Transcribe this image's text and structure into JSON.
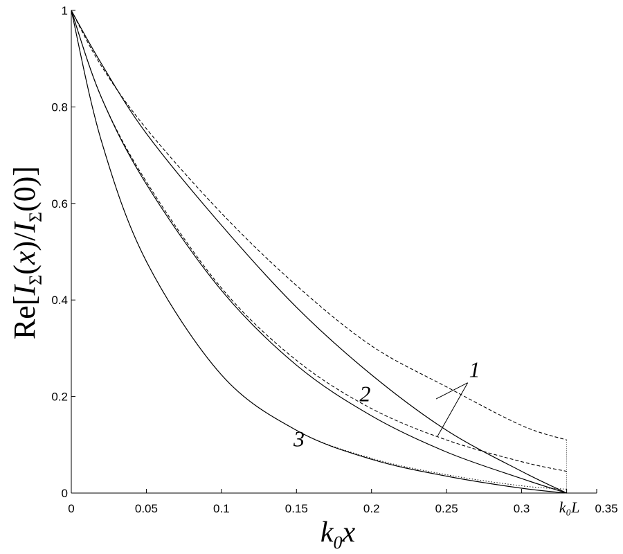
{
  "chart_data": {
    "type": "line",
    "title": "",
    "xlabel": "k₀x",
    "ylabel": "Re[IΣ(x)/IΣ(0)]",
    "xlim": [
      0,
      0.35
    ],
    "ylim": [
      0,
      1
    ],
    "x_ticks": [
      "0",
      "0.05",
      "0.1",
      "0.15",
      "0.2",
      "0.25",
      "0.3",
      "k₀L",
      "0.35"
    ],
    "y_ticks": [
      "0",
      "0.2",
      "0.4",
      "0.6",
      "0.8",
      "1"
    ],
    "end_x": 0.33,
    "grid": false,
    "series": [
      {
        "label": "1",
        "style": "solid",
        "color": "#000000",
        "x": [
          0,
          0.02,
          0.05,
          0.1,
          0.15,
          0.2,
          0.25,
          0.3,
          0.33
        ],
        "y": [
          1,
          0.89,
          0.745,
          0.555,
          0.385,
          0.245,
          0.13,
          0.045,
          0
        ]
      },
      {
        "label": "1",
        "style": "dashed",
        "color": "#000000",
        "x": [
          0,
          0.02,
          0.05,
          0.1,
          0.15,
          0.2,
          0.25,
          0.3,
          0.33
        ],
        "y": [
          1,
          0.885,
          0.755,
          0.58,
          0.43,
          0.305,
          0.22,
          0.14,
          0.11
        ]
      },
      {
        "label": "2",
        "style": "solid",
        "color": "#000000",
        "x": [
          0,
          0.02,
          0.05,
          0.1,
          0.15,
          0.2,
          0.25,
          0.3,
          0.33
        ],
        "y": [
          1,
          0.82,
          0.64,
          0.42,
          0.265,
          0.16,
          0.085,
          0.03,
          0
        ]
      },
      {
        "label": "2",
        "style": "dashed",
        "color": "#000000",
        "x": [
          0,
          0.02,
          0.05,
          0.1,
          0.15,
          0.2,
          0.25,
          0.3,
          0.33
        ],
        "y": [
          1,
          0.82,
          0.645,
          0.425,
          0.275,
          0.175,
          0.11,
          0.065,
          0.045
        ]
      },
      {
        "label": "3",
        "style": "solid",
        "color": "#000000",
        "x": [
          0,
          0.02,
          0.05,
          0.1,
          0.15,
          0.2,
          0.25,
          0.3,
          0.33
        ],
        "y": [
          1,
          0.73,
          0.48,
          0.245,
          0.13,
          0.07,
          0.035,
          0.01,
          0
        ]
      },
      {
        "label": "3",
        "style": "dotted",
        "color": "#000000",
        "x": [
          0,
          0.02,
          0.05,
          0.1,
          0.15,
          0.2,
          0.25,
          0.3,
          0.33
        ],
        "y": [
          1,
          0.73,
          0.48,
          0.245,
          0.13,
          0.072,
          0.038,
          0.015,
          0.008
        ]
      }
    ],
    "annotations": [
      {
        "text": "1",
        "x": 0.265,
        "y": 0.24
      },
      {
        "text": "2",
        "x": 0.192,
        "y": 0.19
      },
      {
        "text": "3",
        "x": 0.148,
        "y": 0.097
      }
    ]
  }
}
